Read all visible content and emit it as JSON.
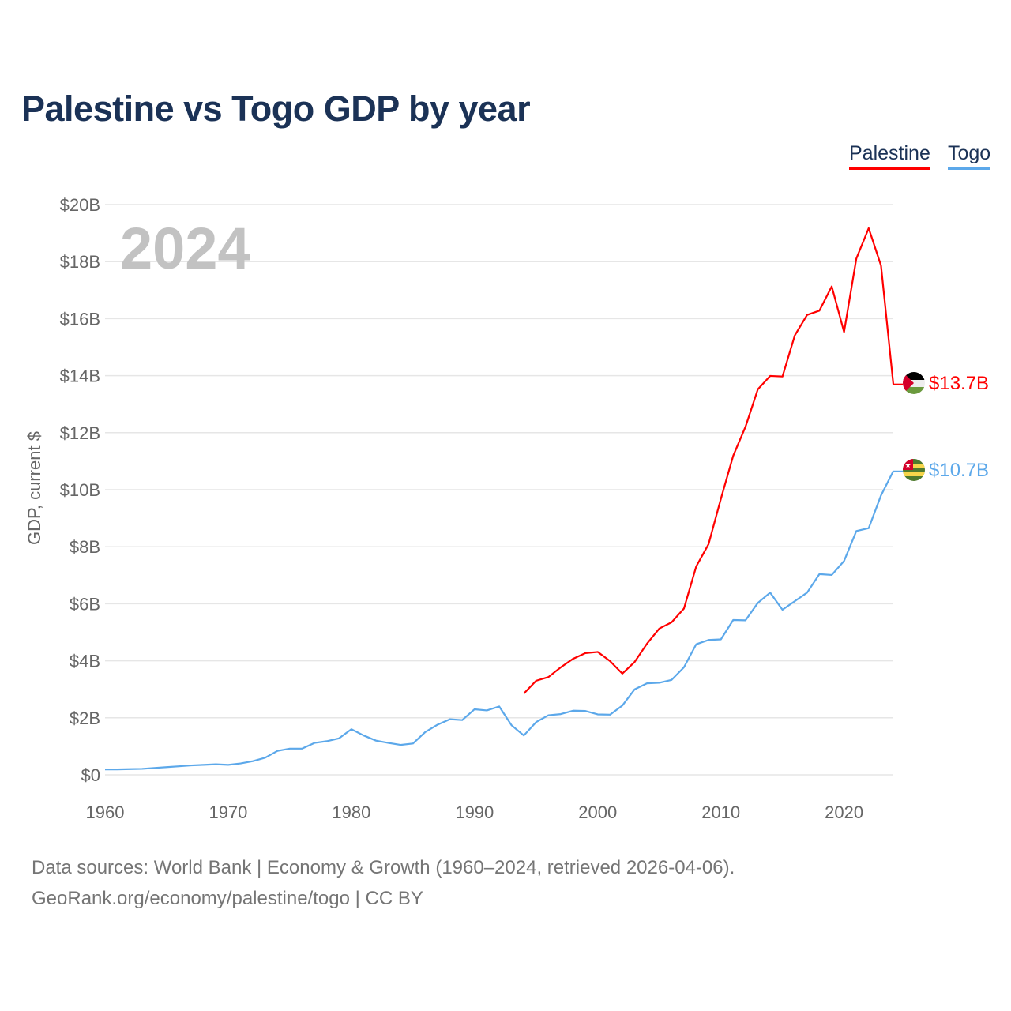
{
  "title": "Palestine vs Togo GDP by year",
  "legend": [
    {
      "label": "Palestine",
      "color": "#ff0000"
    },
    {
      "label": "Togo",
      "color": "#5ca8ea"
    }
  ],
  "year_watermark": "2024",
  "footer": {
    "line1": "Data sources: World Bank | Economy & Growth (1960–2024, retrieved 2026-04-06).",
    "line2": "GeoRank.org/economy/palestine/togo | CC BY"
  },
  "chart_data": {
    "type": "line",
    "title": "Palestine vs Togo GDP by year",
    "xlabel": "",
    "ylabel": "GDP, current $",
    "xlim": [
      1960,
      2024
    ],
    "ylim": [
      0,
      20
    ],
    "x_ticks": [
      1960,
      1970,
      1980,
      1990,
      2000,
      2010,
      2020
    ],
    "x_tick_labels": [
      "1960",
      "1970",
      "1980",
      "1990",
      "2000",
      "2010",
      "2020"
    ],
    "y_ticks": [
      0,
      2,
      4,
      6,
      8,
      10,
      12,
      14,
      16,
      18,
      20
    ],
    "y_tick_labels": [
      "$0",
      "$2B",
      "$4B",
      "$6B",
      "$8B",
      "$10B",
      "$12B",
      "$14B",
      "$16B",
      "$18B",
      "$20B"
    ],
    "grid": true,
    "legend_position": "top-right",
    "series": [
      {
        "name": "Palestine",
        "color": "#ff0000",
        "end_label": "$13.7B",
        "flag": "palestine-flag",
        "x_start": 1994,
        "values": [
          2.85,
          3.3,
          3.43,
          3.77,
          4.07,
          4.27,
          4.31,
          3.99,
          3.55,
          3.96,
          4.6,
          5.13,
          5.35,
          5.83,
          7.31,
          8.09,
          9.68,
          11.19,
          12.21,
          13.52,
          13.99,
          13.97,
          15.41,
          16.13,
          16.28,
          17.13,
          15.53,
          18.11,
          19.17,
          17.86,
          13.7
        ]
      },
      {
        "name": "Togo",
        "color": "#5ca8ea",
        "end_label": "$10.7B",
        "flag": "togo-flag",
        "x_start": 1960,
        "values": [
          0.19,
          0.19,
          0.2,
          0.21,
          0.24,
          0.27,
          0.3,
          0.33,
          0.35,
          0.37,
          0.35,
          0.4,
          0.48,
          0.6,
          0.84,
          0.92,
          0.92,
          1.12,
          1.18,
          1.28,
          1.6,
          1.38,
          1.2,
          1.12,
          1.05,
          1.1,
          1.5,
          1.76,
          1.95,
          1.92,
          2.3,
          2.26,
          2.4,
          1.74,
          1.38,
          1.85,
          2.09,
          2.13,
          2.25,
          2.24,
          2.12,
          2.11,
          2.43,
          3.0,
          3.21,
          3.23,
          3.33,
          3.77,
          4.58,
          4.73,
          4.75,
          5.43,
          5.42,
          6.03,
          6.39,
          5.79,
          6.09,
          6.39,
          7.04,
          7.01,
          7.5,
          8.55,
          8.65,
          9.8,
          10.65
        ]
      }
    ]
  }
}
